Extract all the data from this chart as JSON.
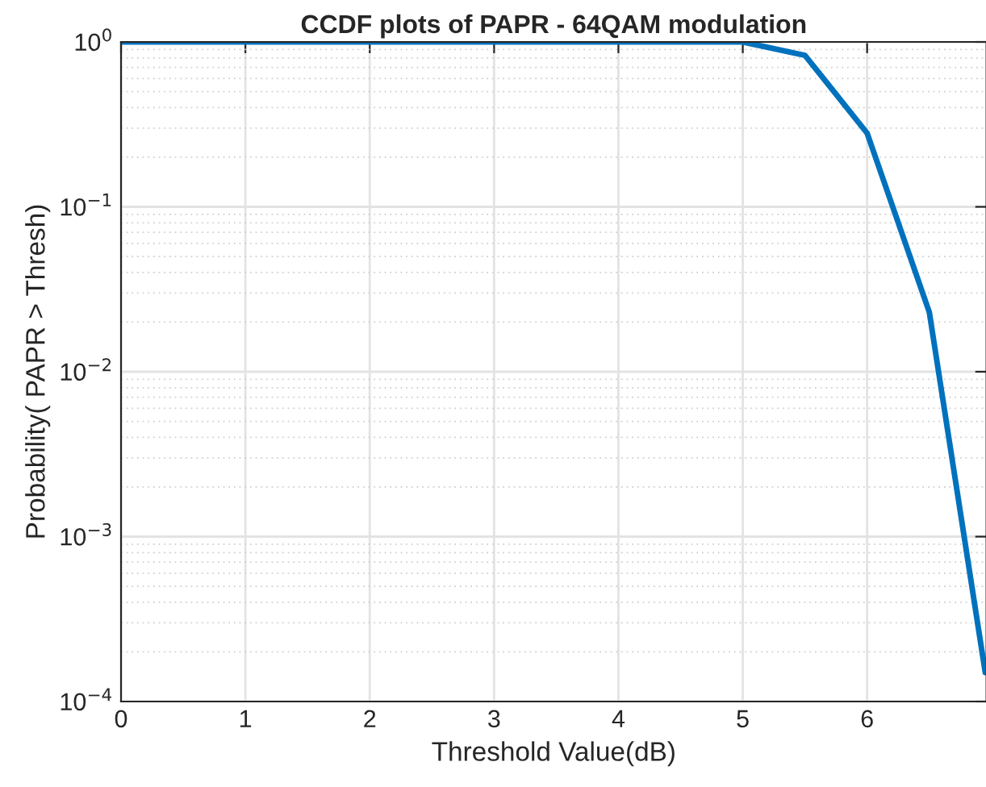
{
  "chart_data": {
    "type": "line",
    "title": "CCDF plots of PAPR - 64QAM modulation",
    "xlabel": "Threshold Value(dB)",
    "ylabel": "Probability( PAPR > Thresh)",
    "x": [
      0,
      0.5,
      1,
      1.5,
      2,
      2.5,
      3,
      3.5,
      4,
      4.5,
      5,
      5.5,
      6,
      6.5,
      6.95
    ],
    "series": [
      {
        "color": "#0072bd",
        "values": [
          1,
          1,
          1,
          1,
          1,
          1,
          1,
          1,
          1,
          1,
          1,
          0.83,
          0.28,
          0.023,
          0.00015
        ]
      }
    ],
    "log": "y",
    "xlim": [
      0,
      6.96
    ],
    "ylim": [
      0.0001,
      1
    ],
    "xticks": [
      0,
      1,
      2,
      3,
      4,
      5,
      6
    ],
    "yticks": [
      {
        "value": 0.0001,
        "label": "10$^{−4}$"
      },
      {
        "value": 0.001,
        "label": "10$^{−3}$"
      },
      {
        "value": 0.01,
        "label": "10$^{−2}$"
      },
      {
        "value": 0.1,
        "label": "10$^{−1}$"
      },
      {
        "value": 1,
        "label": "10$^{0}$"
      }
    ],
    "grid": true,
    "line_style": "solid",
    "marker": "none"
  }
}
